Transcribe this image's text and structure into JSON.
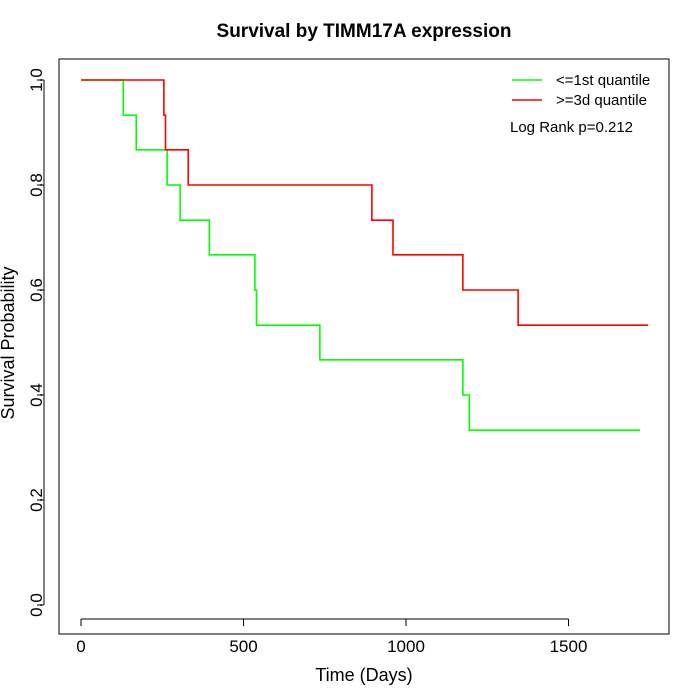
{
  "chart_data": {
    "type": "line",
    "step": true,
    "title": "Survival by TIMM17A expression",
    "xlabel": "Time (Days)",
    "ylabel": "Survival Probability",
    "xlim": [
      0,
      1800
    ],
    "ylim": [
      0,
      1.0
    ],
    "x_ticks": [
      0,
      500,
      1000,
      1500
    ],
    "y_ticks": [
      "0.0",
      "0.2",
      "0.4",
      "0.6",
      "0.8",
      "1.0"
    ],
    "grid": false,
    "legend_position": "top-right",
    "annotation": "Log Rank p=0.212",
    "series": [
      {
        "name": "<=1st quantile",
        "color": "#00ff00",
        "x": [
          0,
          130,
          170,
          265,
          305,
          395,
          535,
          540,
          735,
          1175,
          1195,
          1720
        ],
        "y": [
          1.0,
          0.933,
          0.867,
          0.8,
          0.733,
          0.667,
          0.6,
          0.533,
          0.467,
          0.4,
          0.333,
          0.333
        ]
      },
      {
        "name": ">=3d quantile",
        "color": "#ff0000",
        "x": [
          0,
          255,
          260,
          330,
          895,
          960,
          1175,
          1345,
          1745
        ],
        "y": [
          1.0,
          0.933,
          0.867,
          0.8,
          0.733,
          0.667,
          0.6,
          0.533,
          0.533
        ]
      }
    ]
  }
}
